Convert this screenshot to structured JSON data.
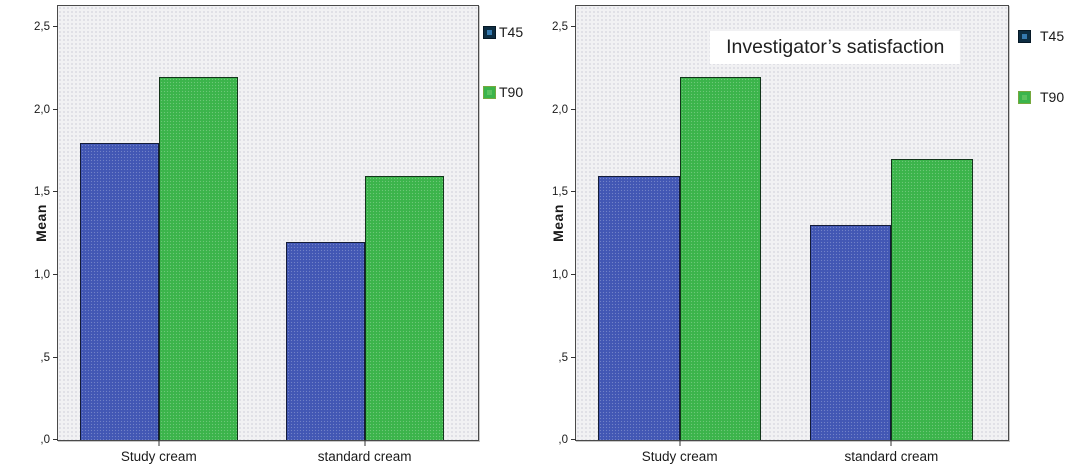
{
  "figure": {
    "description": "Two clustered bar charts of mean satisfaction scores for Study cream vs standard cream at T45 and T90"
  },
  "colors": {
    "background": "#ffffff",
    "plot_background": "#f1f1f3",
    "plot_border": "#4a4a4a",
    "text": "#1a1a1a",
    "series": [
      {
        "name": "T45",
        "fill": "#4257b4",
        "border": "#141c38",
        "legend_swatch": {
          "bg": "#0d2d42",
          "border": "#061826",
          "inner": "#3579af"
        }
      },
      {
        "name": "T90",
        "fill": "#3bb44b",
        "border": "#12351a",
        "legend_swatch": {
          "bg": "#3bb44b",
          "border": "#76a83e",
          "inner": "#5cc25e"
        }
      }
    ]
  },
  "chart_data": [
    {
      "type": "bar",
      "title": "",
      "ylabel": "Mean",
      "xlabel": "",
      "categories": [
        "Study cream",
        "standard cream"
      ],
      "series": [
        {
          "name": "T45",
          "values": [
            1.8,
            1.2
          ]
        },
        {
          "name": "T90",
          "values": [
            2.2,
            1.6
          ]
        }
      ],
      "yticks": [
        {
          "label": "2,5",
          "value": 2.5
        },
        {
          "label": "2,0",
          "value": 2.0
        },
        {
          "label": "1,5",
          "value": 1.5
        },
        {
          "label": "1,0",
          "value": 1.0
        },
        {
          "label": ",5",
          "value": 0.5
        },
        {
          "label": ",0",
          "value": 0.0
        }
      ],
      "ylim": [
        0,
        2.63
      ],
      "grid": false,
      "legend": [
        "T45",
        "T90"
      ],
      "legend_position": "right"
    },
    {
      "type": "bar",
      "title": "Investigator’s satisfaction",
      "ylabel": "Mean",
      "xlabel": "",
      "categories": [
        "Study cream",
        "standard cream"
      ],
      "series": [
        {
          "name": "T45",
          "values": [
            1.6,
            1.3
          ]
        },
        {
          "name": "T90",
          "values": [
            2.2,
            1.7
          ]
        }
      ],
      "yticks": [
        {
          "label": "2,5",
          "value": 2.5
        },
        {
          "label": "2,0",
          "value": 2.0
        },
        {
          "label": "1,5",
          "value": 1.5
        },
        {
          "label": "1,0",
          "value": 1.0
        },
        {
          "label": ",5",
          "value": 0.5
        },
        {
          "label": ",0",
          "value": 0.0
        }
      ],
      "ylim": [
        0,
        2.63
      ],
      "grid": false,
      "legend": [
        "T45",
        "T90"
      ],
      "legend_position": "right"
    }
  ]
}
